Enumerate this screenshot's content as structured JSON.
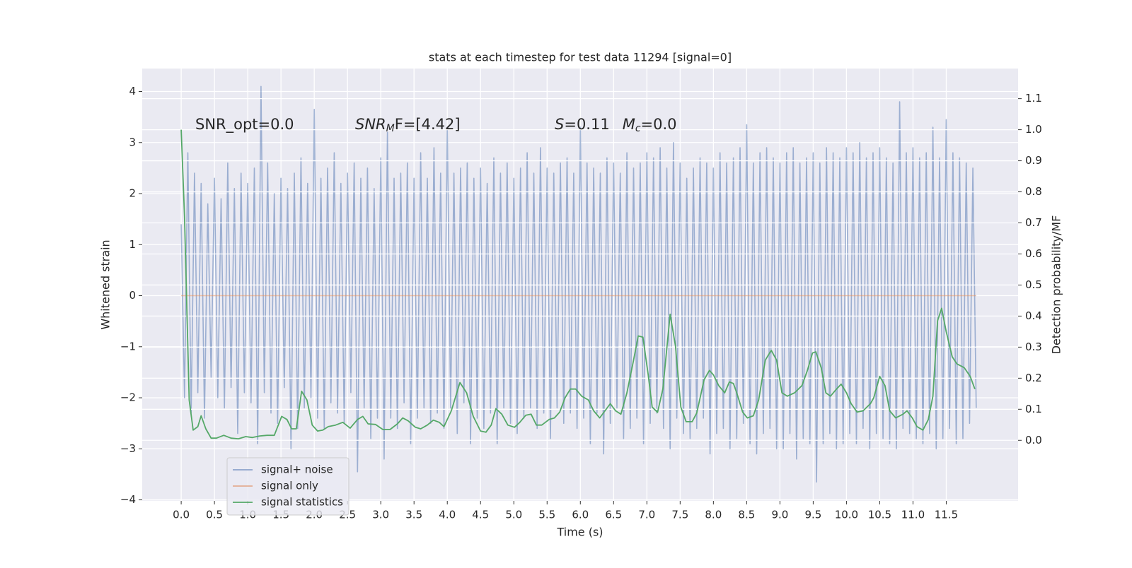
{
  "chart_data": {
    "type": "line",
    "title": "stats at each timestep for test data 11294 [signal=0]",
    "xlabel": "Time (s)",
    "ylabel": "Whitened strain",
    "y2label": "Detection probability/MF",
    "annotations": [
      {
        "parts": [
          "SNR_opt=0.0"
        ]
      },
      {
        "parts": [
          "SNR",
          "M",
          "F=[4.42]"
        ]
      },
      {
        "parts": [
          "S",
          "=0.11",
          "M",
          "c",
          "=0.0"
        ]
      }
    ],
    "xlim": [
      -0.586,
      12.58
    ],
    "xticks": [
      {
        "value": 0,
        "label": "0.0"
      },
      0.5,
      {
        "value": 1,
        "label": "1.0"
      },
      1.5,
      {
        "value": 2,
        "label": "2.0"
      },
      2.5,
      {
        "value": 3,
        "label": "3.0"
      },
      3.5,
      {
        "value": 4,
        "label": "4.0"
      },
      4.5,
      {
        "value": 5,
        "label": "5.0"
      },
      5.5,
      {
        "value": 6,
        "label": "6.0"
      },
      6.5,
      {
        "value": 7,
        "label": "7.0"
      },
      7.5,
      {
        "value": 8,
        "label": "8.0"
      },
      8.5,
      {
        "value": 9,
        "label": "9.0"
      },
      9.5,
      {
        "value": 10,
        "label": "10.0"
      },
      10.5,
      {
        "value": 11,
        "label": "11.0"
      },
      11.5
    ],
    "ylim": [
      -4.02,
      4.45
    ],
    "yticks": [
      {
        "value": -4,
        "label": "−4"
      },
      {
        "value": -3,
        "label": "−3"
      },
      {
        "value": -2,
        "label": "−2"
      },
      {
        "value": -1,
        "label": "−1"
      },
      0,
      1,
      2,
      3,
      4
    ],
    "y2lim": [
      -0.195,
      1.197
    ],
    "y2ticks": [
      {
        "value": 0,
        "label": "0.0"
      },
      0.1,
      0.2,
      0.3,
      0.4,
      0.5,
      0.6,
      0.7,
      0.8,
      0.9,
      {
        "value": 1,
        "label": "1.0"
      },
      1.1
    ],
    "grid": true,
    "legend": "lower left",
    "series": [
      {
        "name": "signal+ noise",
        "color": "#4c72b0",
        "x": [
          0,
          0.05,
          0.1,
          0.15,
          0.2,
          0.25,
          0.3,
          0.35,
          0.4,
          0.45,
          0.5,
          0.55,
          0.6,
          0.65,
          0.7,
          0.75,
          0.8,
          0.85,
          0.9,
          0.95,
          1,
          1.05,
          1.1,
          1.15,
          1.2,
          1.25,
          1.3,
          1.35,
          1.4,
          1.45,
          1.5,
          1.55,
          1.6,
          1.65,
          1.7,
          1.75,
          1.8,
          1.85,
          1.9,
          1.95,
          2,
          2.05,
          2.1,
          2.15,
          2.2,
          2.25,
          2.3,
          2.35,
          2.4,
          2.45,
          2.5,
          2.55,
          2.6,
          2.65,
          2.7,
          2.75,
          2.8,
          2.85,
          2.9,
          2.95,
          3,
          3.05,
          3.1,
          3.15,
          3.2,
          3.25,
          3.3,
          3.35,
          3.4,
          3.45,
          3.5,
          3.55,
          3.6,
          3.65,
          3.7,
          3.75,
          3.8,
          3.85,
          3.9,
          3.95,
          4,
          4.05,
          4.1,
          4.15,
          4.2,
          4.25,
          4.3,
          4.35,
          4.4,
          4.45,
          4.5,
          4.55,
          4.6,
          4.65,
          4.7,
          4.75,
          4.8,
          4.85,
          4.9,
          4.95,
          5,
          5.05,
          5.1,
          5.15,
          5.2,
          5.25,
          5.3,
          5.35,
          5.4,
          5.45,
          5.5,
          5.55,
          5.6,
          5.65,
          5.7,
          5.75,
          5.8,
          5.85,
          5.9,
          5.95,
          6,
          6.05,
          6.1,
          6.15,
          6.2,
          6.25,
          6.3,
          6.35,
          6.4,
          6.45,
          6.5,
          6.55,
          6.6,
          6.65,
          6.7,
          6.75,
          6.8,
          6.85,
          6.9,
          6.95,
          7,
          7.05,
          7.1,
          7.15,
          7.2,
          7.25,
          7.3,
          7.35,
          7.4,
          7.45,
          7.5,
          7.55,
          7.6,
          7.65,
          7.7,
          7.75,
          7.8,
          7.85,
          7.9,
          7.95,
          8,
          8.05,
          8.1,
          8.15,
          8.2,
          8.25,
          8.3,
          8.35,
          8.4,
          8.45,
          8.5,
          8.55,
          8.6,
          8.65,
          8.7,
          8.75,
          8.8,
          8.85,
          8.9,
          8.95,
          9,
          9.05,
          9.1,
          9.15,
          9.2,
          9.25,
          9.3,
          9.35,
          9.4,
          9.45,
          9.5,
          9.55,
          9.6,
          9.65,
          9.7,
          9.75,
          9.8,
          9.85,
          9.9,
          9.95,
          10,
          10.05,
          10.1,
          10.15,
          10.2,
          10.25,
          10.3,
          10.35,
          10.4,
          10.45,
          10.5,
          10.55,
          10.6,
          10.65,
          10.7,
          10.75,
          10.8,
          10.85,
          10.9,
          10.95,
          11,
          11.05,
          11.1,
          11.15,
          11.2,
          11.25,
          11.3,
          11.35,
          11.4,
          11.45,
          11.5,
          11.55,
          11.6,
          11.65,
          11.7,
          11.75,
          11.8,
          11.85,
          11.9,
          11.95
        ],
        "values": [
          1.4,
          -2.0,
          2.8,
          -2.3,
          2.4,
          -1.9,
          2.2,
          -2.4,
          1.8,
          -1.6,
          2.3,
          -2.0,
          1.9,
          -2.2,
          2.6,
          -1.8,
          2.1,
          -2.7,
          2.4,
          -1.9,
          2.2,
          -2.1,
          2.5,
          -2.9,
          4.1,
          -1.9,
          2.6,
          -2.3,
          2.0,
          -2.5,
          2.3,
          -1.8,
          2.1,
          -3.0,
          2.4,
          -2.6,
          2.7,
          -2.2,
          2.2,
          -2.0,
          3.65,
          -2.4,
          2.3,
          -2.6,
          2.5,
          -2.1,
          2.8,
          -2.3,
          2.2,
          -2.5,
          2.4,
          -1.9,
          2.6,
          -3.45,
          2.3,
          -2.2,
          2.5,
          -2.8,
          2.1,
          -2.4,
          2.7,
          -3.2,
          3.2,
          -2.4,
          2.3,
          -2.6,
          2.4,
          -2.1,
          2.6,
          -2.9,
          2.3,
          -2.4,
          2.8,
          -2.2,
          2.3,
          -2.5,
          2.9,
          -2.3,
          2.4,
          -2.6,
          3.3,
          -2.2,
          2.4,
          -2.7,
          2.5,
          -2.1,
          2.6,
          -2.9,
          2.3,
          -2.4,
          2.5,
          -2.6,
          2.2,
          -2.3,
          2.7,
          -2.9,
          2.4,
          -2.2,
          2.6,
          -2.5,
          2.3,
          -2.7,
          2.5,
          -2.4,
          2.8,
          -2.2,
          2.4,
          -2.6,
          2.9,
          -2.3,
          2.5,
          -2.8,
          2.4,
          -2.2,
          2.6,
          -2.5,
          2.7,
          -2.3,
          2.4,
          -2.6,
          3.3,
          -2.4,
          2.6,
          -2.9,
          2.5,
          -2.3,
          2.4,
          -3.1,
          2.7,
          -2.5,
          2.6,
          -2.2,
          2.4,
          -2.8,
          2.8,
          -2.6,
          2.5,
          -2.4,
          2.6,
          -2.9,
          2.8,
          -2.5,
          2.7,
          -2.3,
          2.9,
          -2.6,
          2.5,
          -3.0,
          3.0,
          -2.4,
          2.6,
          -2.7,
          2.3,
          -2.8,
          2.5,
          -2.6,
          2.7,
          -2.4,
          2.6,
          -3.1,
          2.5,
          -2.7,
          2.8,
          -2.6,
          2.6,
          -3.0,
          2.7,
          -2.8,
          2.9,
          -2.5,
          3.35,
          -2.9,
          2.6,
          -3.1,
          2.8,
          -2.7,
          2.9,
          -2.6,
          2.7,
          -3.0,
          2.6,
          -3.0,
          2.8,
          -2.7,
          2.9,
          -3.2,
          2.6,
          -2.8,
          2.7,
          -2.9,
          2.8,
          -3.65,
          2.6,
          -2.9,
          2.9,
          -2.7,
          2.8,
          -3.0,
          2.7,
          -2.9,
          2.9,
          -2.7,
          2.8,
          -2.9,
          3.0,
          -2.6,
          2.7,
          -3.0,
          2.8,
          -2.7,
          2.9,
          -2.8,
          2.7,
          -2.9,
          2.6,
          -3.0,
          3.8,
          -2.6,
          2.8,
          -2.7,
          2.9,
          -2.8,
          2.7,
          -2.9,
          2.8,
          -2.7,
          3.3,
          -3.0,
          2.7,
          -2.8,
          3.45,
          -2.6,
          2.8,
          -2.9,
          2.7,
          -2.8,
          2.6,
          -2.5,
          2.5,
          -2.2
        ]
      },
      {
        "name": "signal only",
        "color": "#dd8452",
        "x": [
          0,
          11.95
        ],
        "values": [
          0,
          0
        ]
      },
      {
        "name": "signal statistics",
        "color": "#55a868",
        "axis": "y2",
        "x": [
          0,
          0.05,
          0.12,
          0.18,
          0.25,
          0.3,
          0.37,
          0.45,
          0.53,
          0.64,
          0.75,
          0.86,
          0.97,
          1.07,
          1.18,
          1.29,
          1.4,
          1.51,
          1.59,
          1.66,
          1.73,
          1.81,
          1.89,
          1.97,
          2.05,
          2.13,
          2.21,
          2.32,
          2.43,
          2.54,
          2.65,
          2.73,
          2.81,
          2.92,
          3.03,
          3.14,
          3.25,
          3.33,
          3.41,
          3.52,
          3.6,
          3.7,
          3.79,
          3.88,
          3.95,
          4.06,
          4.19,
          4.29,
          4.39,
          4.5,
          4.58,
          4.66,
          4.73,
          4.82,
          4.91,
          5.01,
          5.09,
          5.18,
          5.26,
          5.34,
          5.42,
          5.53,
          5.61,
          5.69,
          5.77,
          5.85,
          5.93,
          6.02,
          6.12,
          6.2,
          6.29,
          6.37,
          6.45,
          6.53,
          6.61,
          6.7,
          6.8,
          6.87,
          6.94,
          7.02,
          7.08,
          7.16,
          7.24,
          7.35,
          7.43,
          7.51,
          7.59,
          7.68,
          7.75,
          7.86,
          7.94,
          8.0,
          8.08,
          8.17,
          8.24,
          8.3,
          8.35,
          8.44,
          8.51,
          8.6,
          8.68,
          8.78,
          8.87,
          8.95,
          9.03,
          9.11,
          9.22,
          9.33,
          9.41,
          9.49,
          9.54,
          9.62,
          9.69,
          9.76,
          9.85,
          9.92,
          10.0,
          10.07,
          10.16,
          10.25,
          10.36,
          10.41,
          10.5,
          10.58,
          10.65,
          10.74,
          10.85,
          10.91,
          10.99,
          11.06,
          11.15,
          11.23,
          11.3,
          11.37,
          11.43,
          11.5,
          11.59,
          11.66,
          11.77,
          11.86,
          11.93
        ],
        "values": [
          1.0,
          0.72,
          0.13,
          0.033,
          0.044,
          0.079,
          0.037,
          0.007,
          0.007,
          0.016,
          0.007,
          0.005,
          0.012,
          0.009,
          0.014,
          0.016,
          0.016,
          0.077,
          0.067,
          0.037,
          0.037,
          0.158,
          0.13,
          0.049,
          0.03,
          0.033,
          0.044,
          0.049,
          0.058,
          0.039,
          0.067,
          0.077,
          0.053,
          0.051,
          0.035,
          0.035,
          0.053,
          0.072,
          0.063,
          0.042,
          0.037,
          0.049,
          0.065,
          0.058,
          0.044,
          0.095,
          0.186,
          0.153,
          0.077,
          0.03,
          0.026,
          0.049,
          0.102,
          0.084,
          0.049,
          0.042,
          0.058,
          0.081,
          0.084,
          0.049,
          0.049,
          0.067,
          0.072,
          0.091,
          0.137,
          0.165,
          0.165,
          0.142,
          0.13,
          0.095,
          0.072,
          0.095,
          0.118,
          0.095,
          0.084,
          0.153,
          0.258,
          0.336,
          0.332,
          0.211,
          0.107,
          0.09,
          0.165,
          0.406,
          0.304,
          0.107,
          0.06,
          0.06,
          0.088,
          0.195,
          0.225,
          0.211,
          0.176,
          0.153,
          0.188,
          0.183,
          0.153,
          0.091,
          0.072,
          0.079,
          0.13,
          0.258,
          0.29,
          0.258,
          0.153,
          0.142,
          0.153,
          0.176,
          0.223,
          0.281,
          0.285,
          0.234,
          0.153,
          0.142,
          0.165,
          0.181,
          0.153,
          0.118,
          0.091,
          0.095,
          0.118,
          0.137,
          0.206,
          0.176,
          0.095,
          0.072,
          0.084,
          0.095,
          0.072,
          0.044,
          0.033,
          0.067,
          0.142,
          0.385,
          0.425,
          0.35,
          0.269,
          0.246,
          0.234,
          0.206,
          0.165
        ]
      }
    ]
  }
}
